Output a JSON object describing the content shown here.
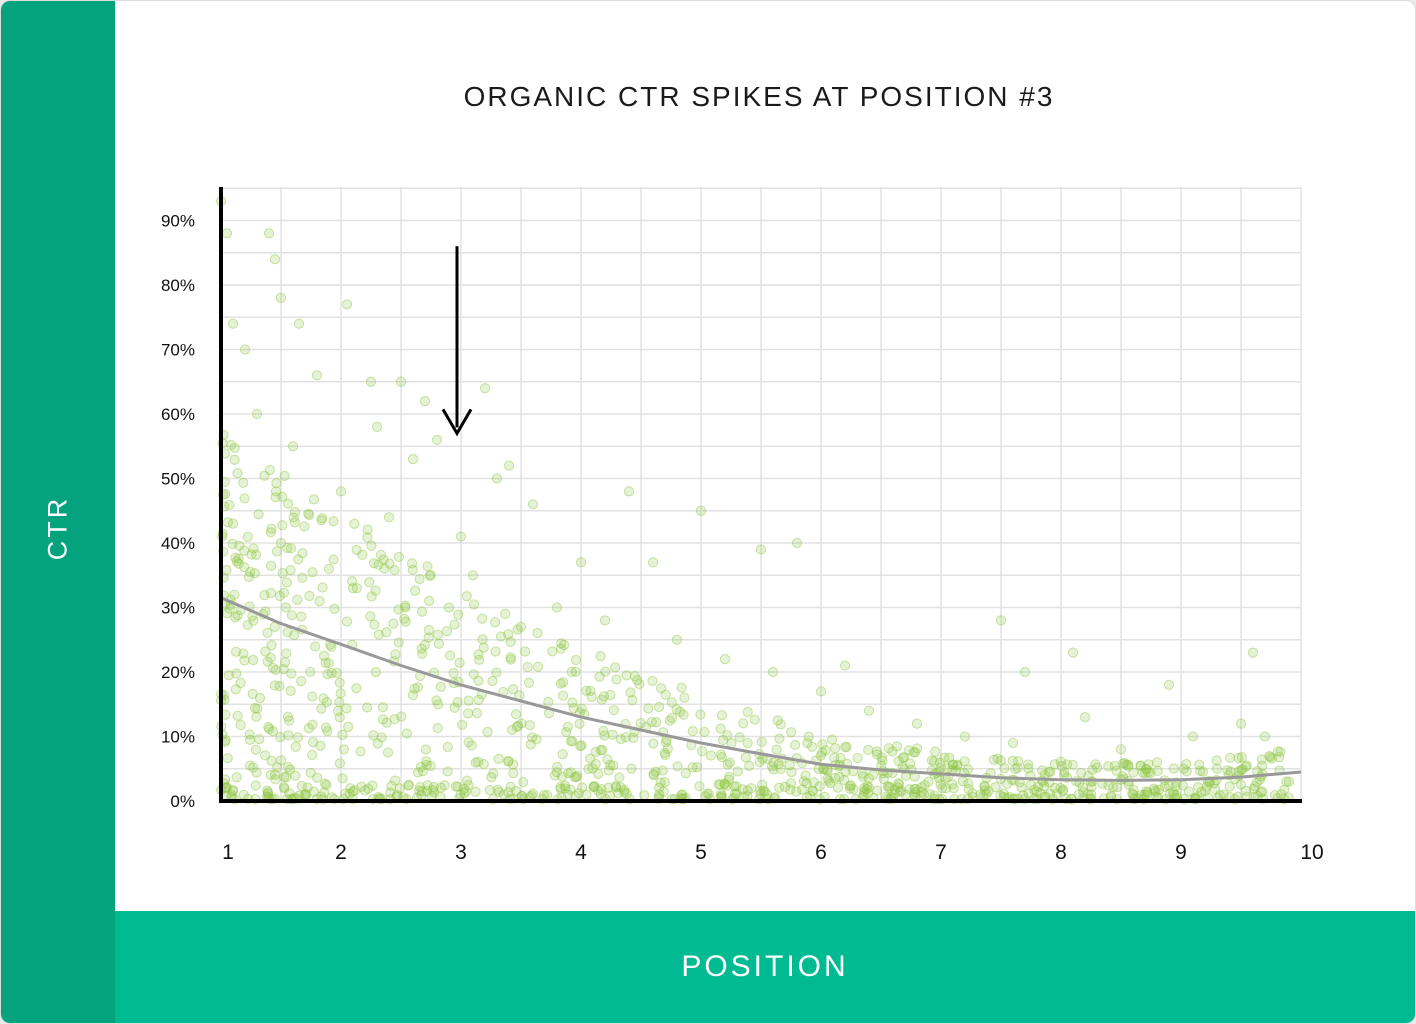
{
  "chart_data": {
    "type": "scatter",
    "title": "ORGANIC CTR SPIKES AT POSITION #3",
    "xlabel": "POSITION",
    "ylabel": "CTR",
    "xlim": [
      1,
      10
    ],
    "ylim": [
      0,
      95
    ],
    "x_ticks": [
      "1",
      "2",
      "3",
      "4",
      "5",
      "6",
      "7",
      "8",
      "9",
      "10"
    ],
    "y_ticks": [
      "0%",
      "10%",
      "20%",
      "30%",
      "40%",
      "50%",
      "60%",
      "70%",
      "80%",
      "90%"
    ],
    "grid": true,
    "point_color": "#8cc63f",
    "trend_color": "#999999",
    "annotation": {
      "type": "arrow",
      "x": 3,
      "y_from": 86,
      "y_to": 57
    },
    "trend": {
      "name": "",
      "x": [
        1,
        1.5,
        2,
        2.5,
        3,
        3.5,
        4,
        4.5,
        5,
        5.5,
        6,
        6.5,
        7,
        7.5,
        8,
        8.5,
        9,
        9.5,
        10
      ],
      "y": [
        31.5,
        27.5,
        24.3,
        21.0,
        18.0,
        15.5,
        13.0,
        11.0,
        9.0,
        7.3,
        5.7,
        4.8,
        4.2,
        3.6,
        3.3,
        3.2,
        3.3,
        3.7,
        4.5
      ]
    },
    "points": [
      [
        1.0,
        93
      ],
      [
        1.05,
        88
      ],
      [
        1.4,
        88
      ],
      [
        1.45,
        84
      ],
      [
        1.5,
        78
      ],
      [
        2.05,
        77
      ],
      [
        1.1,
        74
      ],
      [
        1.65,
        74
      ],
      [
        1.2,
        70
      ],
      [
        2.25,
        65
      ],
      [
        2.5,
        65
      ],
      [
        2.7,
        62
      ],
      [
        2.8,
        56
      ],
      [
        3.2,
        64
      ],
      [
        2.6,
        53
      ],
      [
        3.3,
        50
      ],
      [
        3.4,
        52
      ],
      [
        3.6,
        46
      ],
      [
        4.4,
        48
      ],
      [
        4.0,
        37
      ],
      [
        5.0,
        45
      ],
      [
        5.5,
        39
      ],
      [
        5.8,
        40
      ],
      [
        4.6,
        37
      ],
      [
        2.3,
        58
      ],
      [
        1.8,
        66
      ],
      [
        1.3,
        60
      ],
      [
        1.6,
        55
      ],
      [
        2.0,
        48
      ],
      [
        2.4,
        44
      ],
      [
        3.0,
        41
      ],
      [
        3.1,
        35
      ],
      [
        3.8,
        30
      ],
      [
        4.2,
        28
      ],
      [
        1.1,
        43
      ],
      [
        1.5,
        40
      ],
      [
        1.9,
        36
      ],
      [
        2.1,
        33
      ],
      [
        2.9,
        30
      ],
      [
        3.5,
        27
      ],
      [
        4.8,
        25
      ],
      [
        5.2,
        22
      ],
      [
        5.6,
        20
      ],
      [
        6.0,
        17
      ],
      [
        6.4,
        14
      ],
      [
        6.8,
        12
      ],
      [
        7.2,
        10
      ],
      [
        7.5,
        28
      ],
      [
        7.7,
        20
      ],
      [
        8.1,
        23
      ],
      [
        8.2,
        13
      ],
      [
        8.9,
        18
      ],
      [
        9.1,
        10
      ],
      [
        9.5,
        12
      ],
      [
        9.6,
        23
      ],
      [
        9.7,
        10
      ],
      [
        6.2,
        21
      ],
      [
        7.6,
        9
      ],
      [
        8.5,
        8
      ],
      [
        8.8,
        6
      ],
      [
        9.3,
        5
      ],
      [
        9.9,
        3
      ]
    ]
  }
}
